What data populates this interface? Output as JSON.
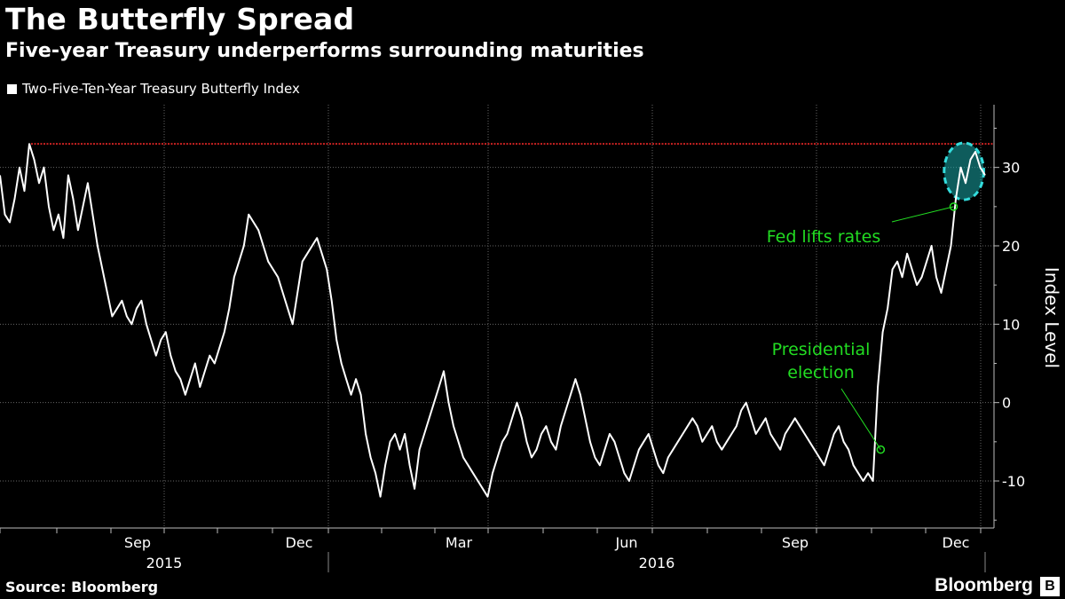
{
  "header": {
    "title": "The Butterfly Spread",
    "subtitle": "Five-year Treasury underperforms surrounding maturities",
    "legend_label": "Two-Five-Ten-Year Treasury Butterfly Index"
  },
  "footer": {
    "source": "Source: Bloomberg",
    "brand": "Bloomberg",
    "brand_icon": "B"
  },
  "colors": {
    "background": "#000000",
    "line": "#ffffff",
    "reference_line": "#cc2222",
    "annotation": "#22dd22",
    "highlight": "#1aa7a7",
    "grid": "#666666"
  },
  "chart_data": {
    "type": "line",
    "title": "Two-Five-Ten-Year Treasury Butterfly Index",
    "ylabel": "Index Level",
    "xlabel": "",
    "ylim": [
      -16,
      38
    ],
    "yticks": [
      -10,
      0,
      10,
      20,
      30
    ],
    "x_month_labels": [
      "Sep",
      "Dec",
      "Mar",
      "Jun",
      "Sep",
      "Dec"
    ],
    "x_year_labels": [
      "2015",
      "2016"
    ],
    "grid": true,
    "reference_line": {
      "value": 33,
      "style": "dotted",
      "label": ""
    },
    "annotations": [
      {
        "text": [
          "Presidential",
          "election"
        ],
        "point": {
          "t": 0.894,
          "value": -6
        }
      },
      {
        "text": [
          "Fed lifts rates"
        ],
        "point": {
          "t": 0.968,
          "value": 25
        }
      }
    ],
    "highlight_region": {
      "t_start": 0.962,
      "t_end": 0.995,
      "value_low": 27,
      "value_high": 32
    },
    "series": [
      {
        "name": "Two-Five-Ten-Year Treasury Butterfly Index",
        "x_range": [
          "2015-06",
          "2016-12"
        ],
        "values": [
          29,
          24,
          23,
          26,
          30,
          27,
          33,
          31,
          28,
          30,
          25,
          22,
          24,
          21,
          29,
          26,
          22,
          25,
          28,
          24,
          20,
          17,
          14,
          11,
          12,
          13,
          11,
          10,
          12,
          13,
          10,
          8,
          6,
          8,
          9,
          6,
          4,
          3,
          1,
          3,
          5,
          2,
          4,
          6,
          5,
          7,
          9,
          12,
          16,
          18,
          20,
          24,
          23,
          22,
          20,
          18,
          17,
          16,
          14,
          12,
          10,
          14,
          18,
          19,
          20,
          21,
          19,
          17,
          13,
          8,
          5,
          3,
          1,
          3,
          1,
          -4,
          -7,
          -9,
          -12,
          -8,
          -5,
          -4,
          -6,
          -4,
          -8,
          -11,
          -6,
          -4,
          -2,
          0,
          2,
          4,
          0,
          -3,
          -5,
          -7,
          -8,
          -9,
          -10,
          -11,
          -12,
          -9,
          -7,
          -5,
          -4,
          -2,
          0,
          -2,
          -5,
          -7,
          -6,
          -4,
          -3,
          -5,
          -6,
          -3,
          -1,
          1,
          3,
          1,
          -2,
          -5,
          -7,
          -8,
          -6,
          -4,
          -5,
          -7,
          -9,
          -10,
          -8,
          -6,
          -5,
          -4,
          -6,
          -8,
          -9,
          -7,
          -6,
          -5,
          -4,
          -3,
          -2,
          -3,
          -5,
          -4,
          -3,
          -5,
          -6,
          -5,
          -4,
          -3,
          -1,
          0,
          -2,
          -4,
          -3,
          -2,
          -4,
          -5,
          -6,
          -4,
          -3,
          -2,
          -3,
          -4,
          -5,
          -6,
          -7,
          -8,
          -6,
          -4,
          -3,
          -5,
          -6,
          -8,
          -9,
          -10,
          -9,
          -10,
          2,
          9,
          12,
          17,
          18,
          16,
          19,
          17,
          15,
          16,
          18,
          20,
          16,
          14,
          17,
          20,
          26,
          30,
          28,
          31,
          32,
          30,
          29
        ]
      }
    ]
  }
}
